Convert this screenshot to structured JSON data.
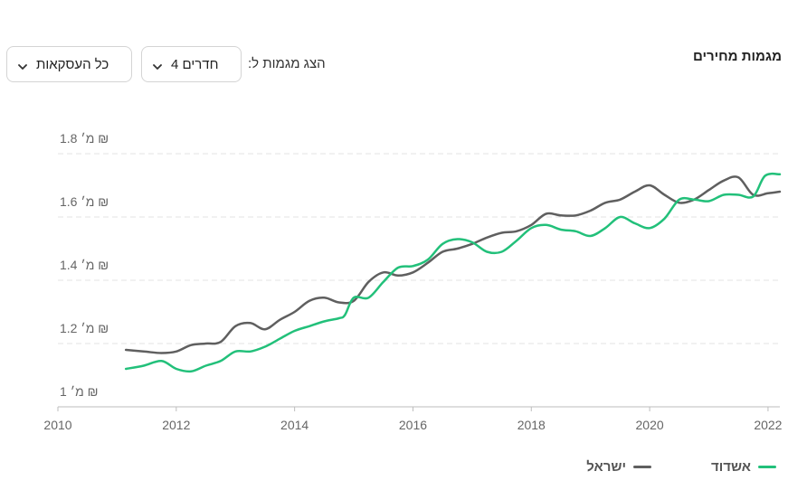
{
  "header": {
    "title": "מגמות מחירים",
    "filter_label": "הצג מגמות ל:",
    "rooms_select": "4 חדרים",
    "deals_select": "כל העסקאות"
  },
  "colors": {
    "ashdod": "#22c07a",
    "israel": "#5f5f5f",
    "grid": "#e3e3e3",
    "axis": "#bdbdbd",
    "tick_text": "#666666"
  },
  "icons": {
    "dropdown": "chevron-down-icon"
  },
  "chart_data": {
    "type": "line",
    "title": "מגמות מחירים",
    "xlabel": "",
    "ylabel": "",
    "xlim": [
      2010,
      2022.2
    ],
    "ylim": [
      1.0,
      1.8
    ],
    "x_ticks": [
      2010,
      2012,
      2014,
      2016,
      2018,
      2020,
      2022
    ],
    "x_tick_labels": [
      "2010",
      "2012",
      "2014",
      "2016",
      "2018",
      "2020",
      "2022"
    ],
    "y_ticks": [
      1.0,
      1.2,
      1.4,
      1.6,
      1.8
    ],
    "y_tick_labels": [
      "1 מ׳ ₪",
      "1.2 מ׳ ₪",
      "1.4 מ׳ ₪",
      "1.6 מ׳ ₪",
      "1.8 מ׳ ₪"
    ],
    "grid": true,
    "legend_position": "bottom-right",
    "series": [
      {
        "name": "אשדוד",
        "color": "#22c07a",
        "points": [
          [
            2011.15,
            1.12
          ],
          [
            2011.45,
            1.13
          ],
          [
            2011.75,
            1.145
          ],
          [
            2012.0,
            1.12
          ],
          [
            2012.25,
            1.112
          ],
          [
            2012.5,
            1.13
          ],
          [
            2012.75,
            1.145
          ],
          [
            2013.0,
            1.175
          ],
          [
            2013.25,
            1.175
          ],
          [
            2013.5,
            1.19
          ],
          [
            2013.75,
            1.215
          ],
          [
            2014.0,
            1.24
          ],
          [
            2014.25,
            1.255
          ],
          [
            2014.5,
            1.27
          ],
          [
            2014.75,
            1.28
          ],
          [
            2014.85,
            1.29
          ],
          [
            2015.0,
            1.345
          ],
          [
            2015.25,
            1.345
          ],
          [
            2015.5,
            1.395
          ],
          [
            2015.75,
            1.44
          ],
          [
            2016.0,
            1.445
          ],
          [
            2016.25,
            1.465
          ],
          [
            2016.5,
            1.515
          ],
          [
            2016.75,
            1.53
          ],
          [
            2017.0,
            1.52
          ],
          [
            2017.25,
            1.49
          ],
          [
            2017.5,
            1.49
          ],
          [
            2017.75,
            1.525
          ],
          [
            2018.0,
            1.565
          ],
          [
            2018.25,
            1.575
          ],
          [
            2018.5,
            1.56
          ],
          [
            2018.75,
            1.555
          ],
          [
            2019.0,
            1.54
          ],
          [
            2019.25,
            1.565
          ],
          [
            2019.5,
            1.6
          ],
          [
            2019.75,
            1.58
          ],
          [
            2020.0,
            1.565
          ],
          [
            2020.25,
            1.595
          ],
          [
            2020.5,
            1.655
          ],
          [
            2020.75,
            1.655
          ],
          [
            2021.0,
            1.65
          ],
          [
            2021.25,
            1.67
          ],
          [
            2021.5,
            1.67
          ],
          [
            2021.75,
            1.665
          ],
          [
            2021.95,
            1.73
          ],
          [
            2022.2,
            1.735
          ]
        ]
      },
      {
        "name": "ישראל",
        "color": "#5f5f5f",
        "points": [
          [
            2011.15,
            1.18
          ],
          [
            2011.45,
            1.175
          ],
          [
            2011.75,
            1.17
          ],
          [
            2012.0,
            1.175
          ],
          [
            2012.25,
            1.195
          ],
          [
            2012.5,
            1.2
          ],
          [
            2012.75,
            1.205
          ],
          [
            2013.0,
            1.255
          ],
          [
            2013.25,
            1.265
          ],
          [
            2013.5,
            1.245
          ],
          [
            2013.75,
            1.275
          ],
          [
            2014.0,
            1.3
          ],
          [
            2014.25,
            1.335
          ],
          [
            2014.5,
            1.345
          ],
          [
            2014.75,
            1.33
          ],
          [
            2015.0,
            1.335
          ],
          [
            2015.25,
            1.395
          ],
          [
            2015.5,
            1.425
          ],
          [
            2015.75,
            1.415
          ],
          [
            2016.0,
            1.425
          ],
          [
            2016.25,
            1.455
          ],
          [
            2016.5,
            1.49
          ],
          [
            2016.75,
            1.5
          ],
          [
            2017.0,
            1.515
          ],
          [
            2017.25,
            1.535
          ],
          [
            2017.5,
            1.55
          ],
          [
            2017.75,
            1.555
          ],
          [
            2018.0,
            1.575
          ],
          [
            2018.25,
            1.61
          ],
          [
            2018.5,
            1.605
          ],
          [
            2018.75,
            1.605
          ],
          [
            2019.0,
            1.62
          ],
          [
            2019.25,
            1.645
          ],
          [
            2019.5,
            1.655
          ],
          [
            2019.75,
            1.68
          ],
          [
            2020.0,
            1.7
          ],
          [
            2020.25,
            1.67
          ],
          [
            2020.5,
            1.645
          ],
          [
            2020.75,
            1.655
          ],
          [
            2021.0,
            1.685
          ],
          [
            2021.25,
            1.715
          ],
          [
            2021.5,
            1.725
          ],
          [
            2021.75,
            1.67
          ],
          [
            2022.0,
            1.675
          ],
          [
            2022.2,
            1.68
          ]
        ]
      }
    ]
  }
}
